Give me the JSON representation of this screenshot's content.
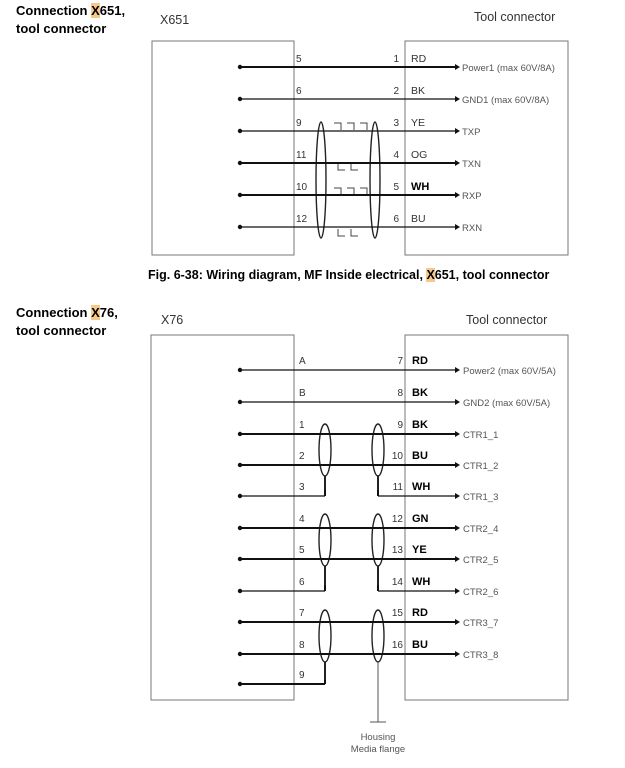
{
  "section1": {
    "heading_prefix": "Connection ",
    "heading_highlight": "X",
    "heading_suffix": "651,",
    "heading_line2": "tool connector",
    "left_title": "X651",
    "right_title": "Tool connector",
    "caption_prefix": "Fig. 6-38: Wiring diagram, MF Inside electrical, ",
    "caption_highlight": "X",
    "caption_suffix": "651, tool connector",
    "rows": [
      {
        "left_pin": "5",
        "right_pin": "1",
        "color": "RD",
        "bold": false,
        "signal": "Power1 (max 60V/8A)"
      },
      {
        "left_pin": "6",
        "right_pin": "2",
        "color": "BK",
        "bold": false,
        "signal": "GND1 (max 60V/8A)"
      },
      {
        "left_pin": "9",
        "right_pin": "3",
        "color": "YE",
        "bold": false,
        "signal": "TXP"
      },
      {
        "left_pin": "11",
        "right_pin": "4",
        "color": "OG",
        "bold": false,
        "signal": "TXN"
      },
      {
        "left_pin": "10",
        "right_pin": "5",
        "color": "WH",
        "bold": true,
        "signal": "RXP"
      },
      {
        "left_pin": "12",
        "right_pin": "6",
        "color": "BU",
        "bold": false,
        "signal": "RXN"
      }
    ]
  },
  "section2": {
    "heading_prefix": "Connection ",
    "heading_highlight": "X",
    "heading_suffix": "76,",
    "heading_line2": "tool connector",
    "left_title": "X76",
    "right_title": "Tool connector",
    "rows": [
      {
        "left_pin": "A",
        "right_pin": "7",
        "color": "RD",
        "signal": "Power2 (max 60V/5A)"
      },
      {
        "left_pin": "B",
        "right_pin": "8",
        "color": "BK",
        "signal": "GND2 (max 60V/5A)"
      },
      {
        "left_pin": "1",
        "right_pin": "9",
        "color": "BK",
        "signal": "CTR1_1"
      },
      {
        "left_pin": "2",
        "right_pin": "10",
        "color": "BU",
        "signal": "CTR1_2"
      },
      {
        "left_pin": "3",
        "right_pin": "11",
        "color": "WH",
        "signal": "CTR1_3"
      },
      {
        "left_pin": "4",
        "right_pin": "12",
        "color": "GN",
        "signal": "CTR2_4"
      },
      {
        "left_pin": "5",
        "right_pin": "13",
        "color": "YE",
        "signal": "CTR2_5"
      },
      {
        "left_pin": "6",
        "right_pin": "14",
        "color": "WH",
        "signal": "CTR2_6"
      },
      {
        "left_pin": "7",
        "right_pin": "15",
        "color": "RD",
        "signal": "CTR3_7"
      },
      {
        "left_pin": "8",
        "right_pin": "16",
        "color": "BU",
        "signal": "CTR3_8"
      },
      {
        "left_pin": "9",
        "right_pin": "",
        "color": "",
        "signal": ""
      }
    ],
    "ground_line1": "Housing",
    "ground_line2": "Media flange"
  }
}
